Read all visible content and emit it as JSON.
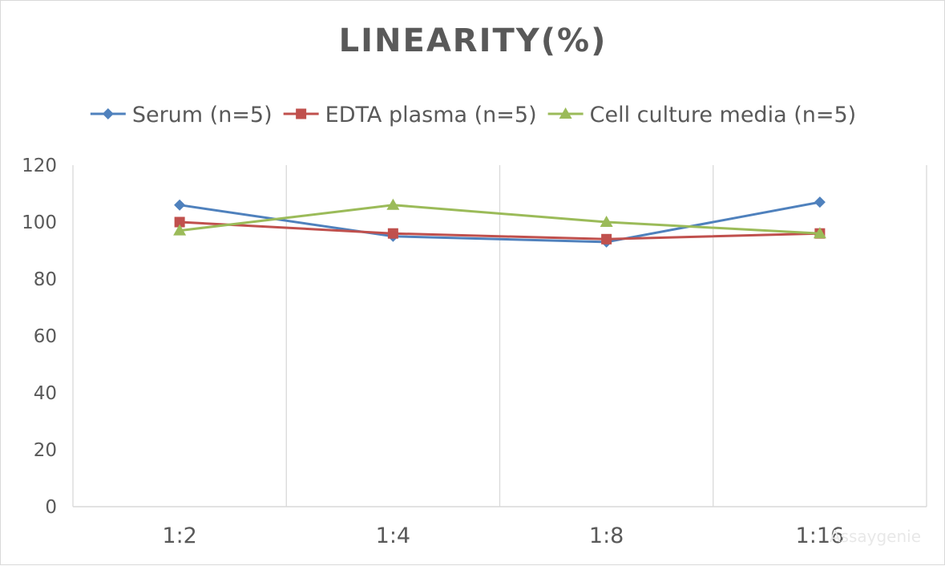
{
  "chart_data": {
    "type": "line",
    "title": "LINEARITY(%)",
    "xlabel": "",
    "ylabel": "",
    "categories": [
      "1:2",
      "1:4",
      "1:8",
      "1:16"
    ],
    "ylim": [
      0,
      120
    ],
    "yticks": [
      0,
      20,
      40,
      60,
      80,
      100,
      120
    ],
    "grid": "vertical",
    "legend_position": "top",
    "series": [
      {
        "name": "Serum (n=5)",
        "values": [
          106,
          95,
          93,
          107
        ],
        "color": "#4f81bd",
        "marker": "diamond"
      },
      {
        "name": "EDTA plasma (n=5)",
        "values": [
          100,
          96,
          94,
          96
        ],
        "color": "#c0504d",
        "marker": "square"
      },
      {
        "name": "Cell culture media (n=5)",
        "values": [
          97,
          106,
          100,
          96
        ],
        "color": "#9bbb59",
        "marker": "triangle"
      }
    ]
  },
  "colors": {
    "grid": "#d9d9d9",
    "text": "#595959",
    "watermark": "#e6e6e6"
  },
  "watermark": "Assaygenie"
}
